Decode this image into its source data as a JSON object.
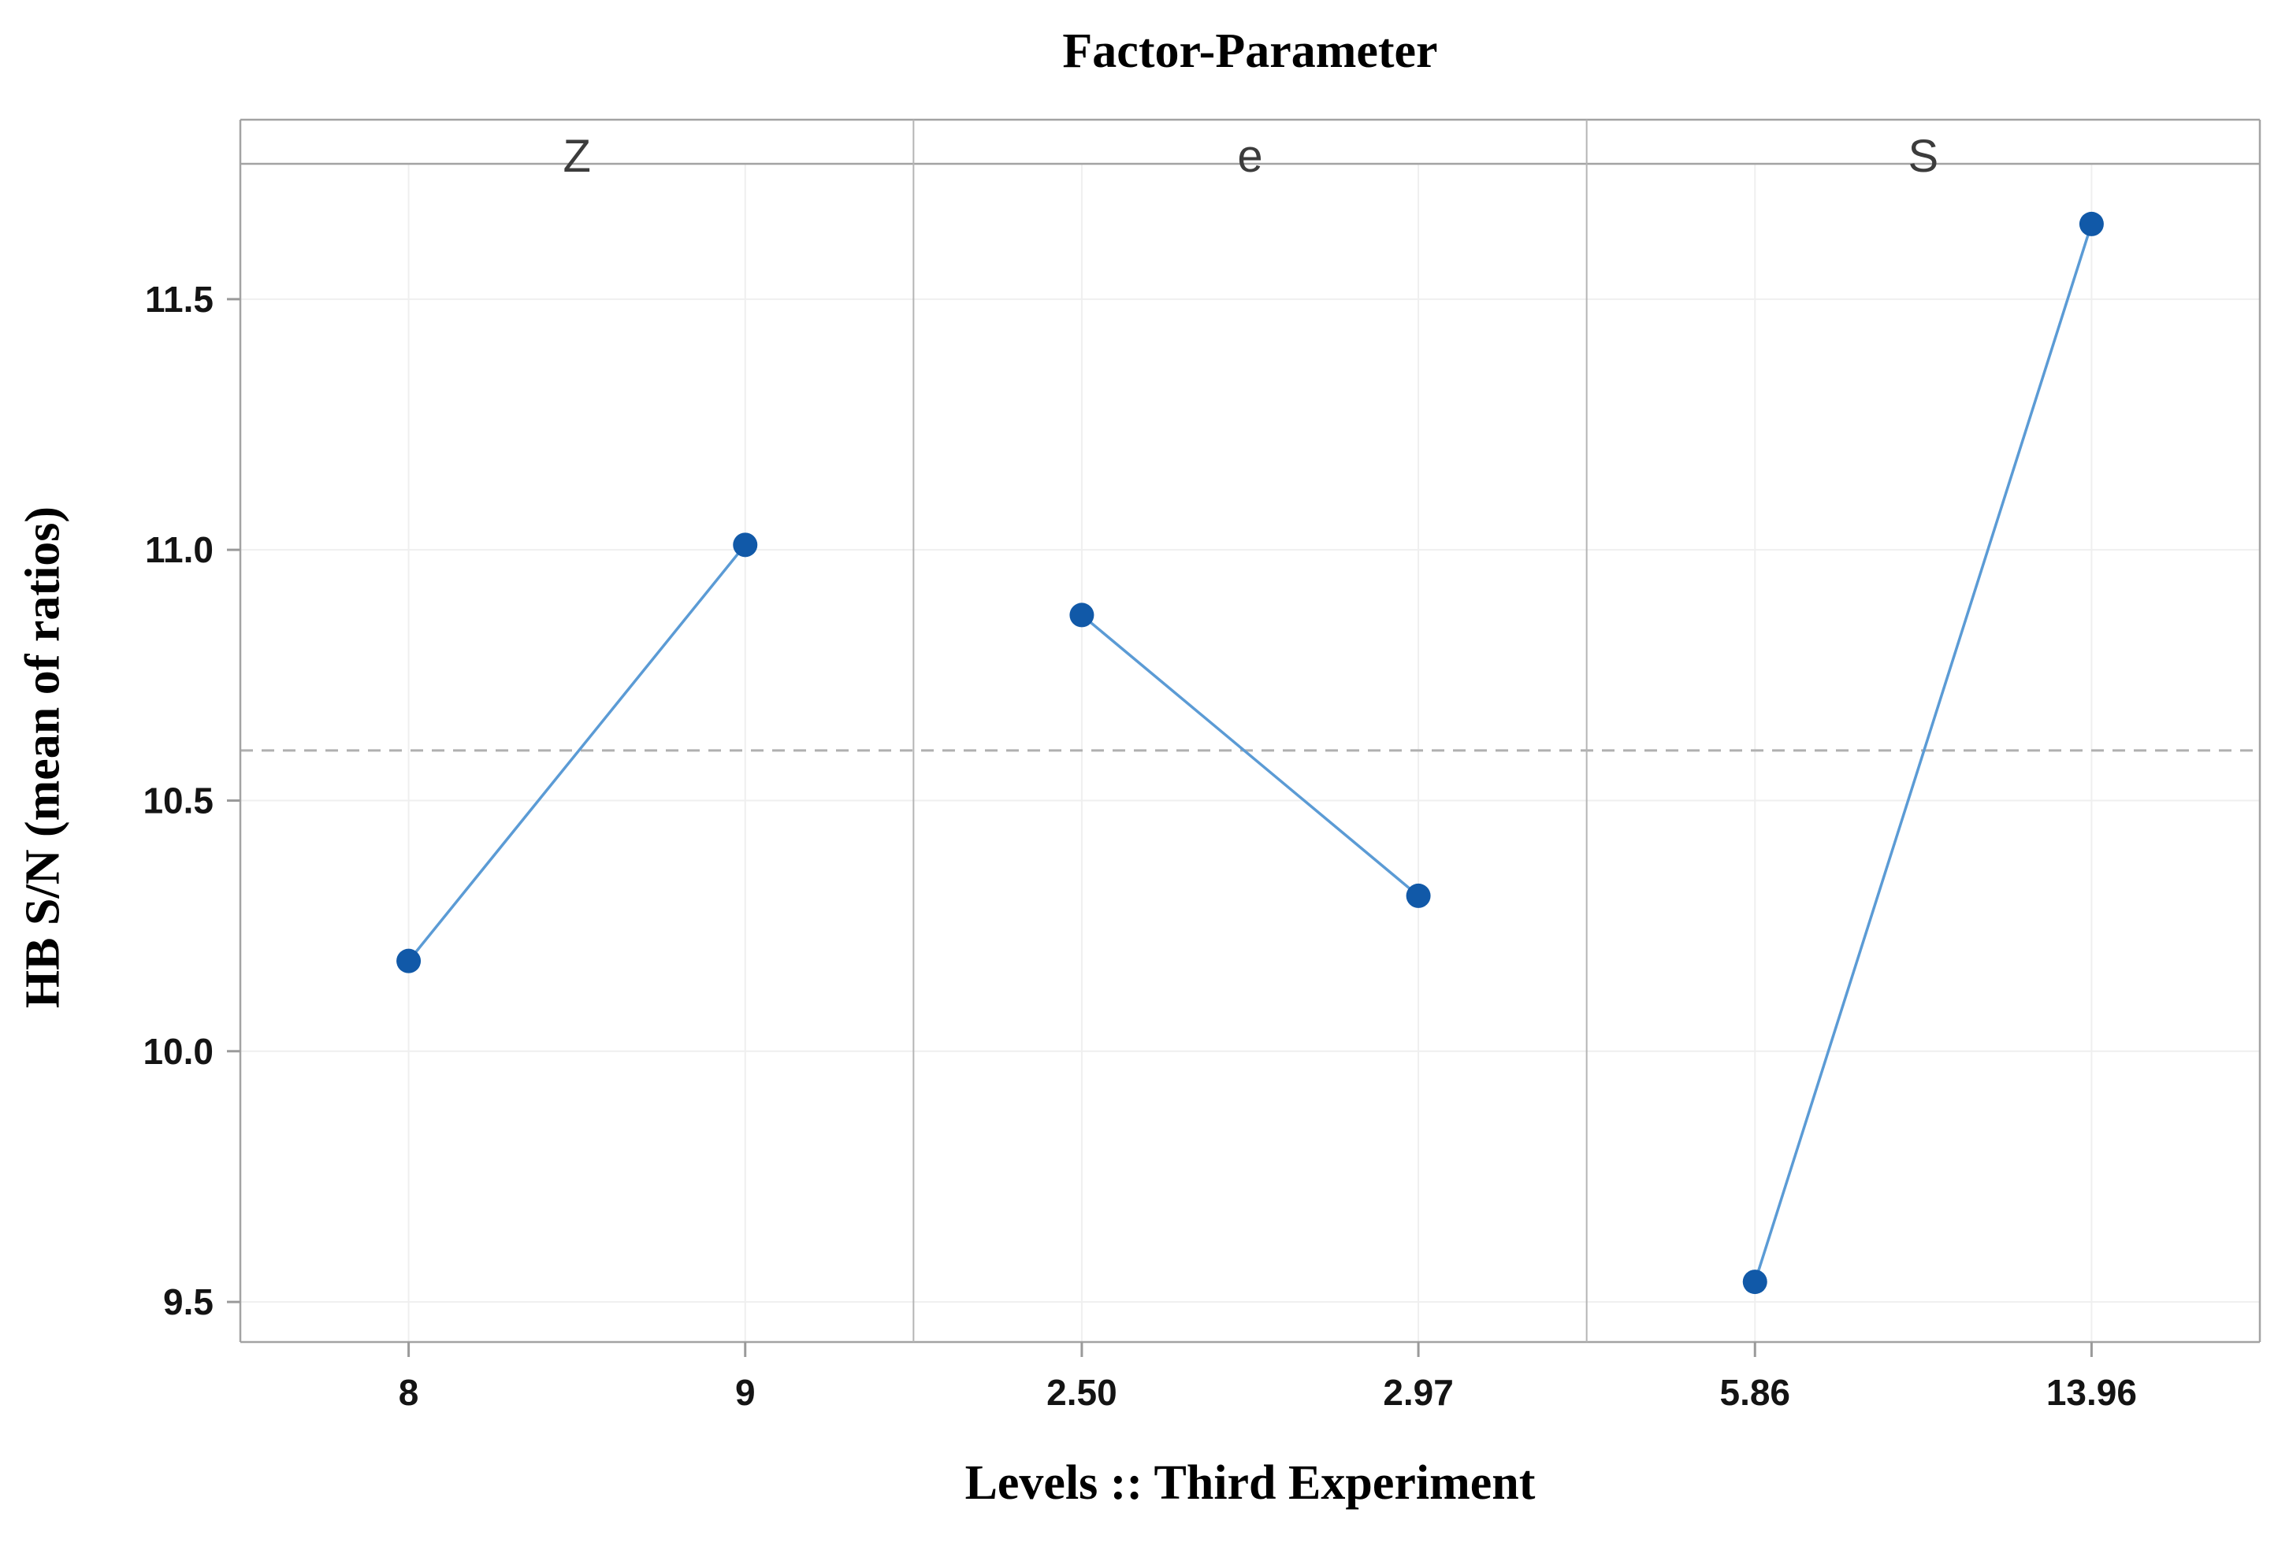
{
  "title": "Factor-Parameter",
  "x_axis_label": "Levels :: Third Experiment",
  "y_axis_label": "HB S/N (mean of ratios)",
  "chart_data": {
    "type": "line",
    "title": "Factor-Parameter",
    "xlabel": "Levels :: Third Experiment",
    "ylabel": "HB S/N (mean of ratios)",
    "ylim": [
      9.42,
      11.77
    ],
    "yticks": [
      11.5,
      11.0,
      10.5,
      10.0,
      9.5
    ],
    "ytick_labels": [
      "11.5",
      "11.0",
      "10.5",
      "10.0",
      "9.5"
    ],
    "grid": true,
    "legend": "none",
    "mean_reference_line": 10.6,
    "panels": [
      {
        "factor": "Z",
        "levels": [
          "8",
          "9"
        ],
        "values": [
          10.18,
          11.01
        ]
      },
      {
        "factor": "e",
        "levels": [
          "2.50",
          "2.97"
        ],
        "values": [
          10.87,
          10.31
        ]
      },
      {
        "factor": "S",
        "levels": [
          "5.86",
          "13.96"
        ],
        "values": [
          9.54,
          11.65
        ]
      }
    ],
    "colors": {
      "marker": "#1159a8",
      "series_line": "#5b9bd5",
      "mean_line": "#b0b0b0",
      "grid": "#efefef",
      "frame": "#a3a3a3",
      "separator": "#b5b5b5",
      "tick": "#9a9a9a",
      "tick_text": "#141414",
      "panel_header_text": "#3c3c3c"
    }
  }
}
